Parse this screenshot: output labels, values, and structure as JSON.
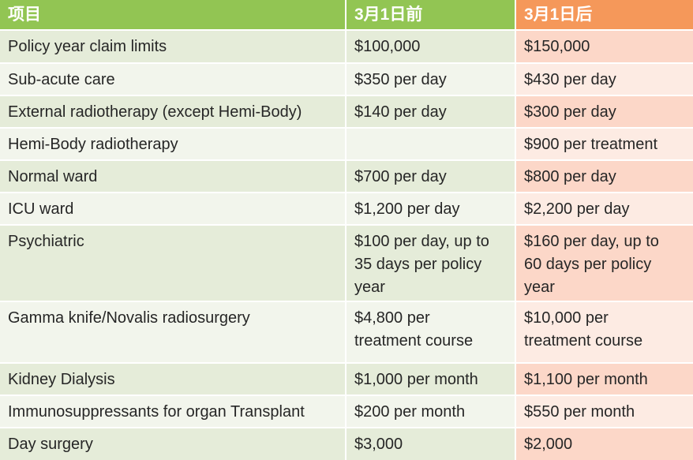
{
  "headers": [
    "项目",
    "3月1日前",
    "3月1日后"
  ],
  "rows": [
    [
      "Policy year claim limits",
      "$100,000",
      "$150,000"
    ],
    [
      "Sub-acute care",
      "$350 per day",
      "$430 per day"
    ],
    [
      "External radiotherapy (except Hemi-Body)",
      "$140 per day",
      "$300 per day"
    ],
    [
      "Hemi-Body radiotherapy",
      "",
      "$900 per treatment"
    ],
    [
      "Normal ward",
      "$700 per day",
      "$800 per day"
    ],
    [
      "ICU ward",
      "$1,200 per day",
      "$2,200 per day"
    ],
    [
      "Psychiatric",
      "$100 per day, up to\n35 days per policy\nyear",
      "$160 per day, up to\n60 days per policy\nyear"
    ],
    [
      "Gamma knife/Novalis radiosurgery",
      "$4,800 per\ntreatment course",
      "$10,000 per\ntreatment course"
    ],
    [
      "Kidney Dialysis",
      "$1,000 per month",
      "$1,100 per month"
    ],
    [
      "Immunosuppressants for organ Transplant",
      "$200 per month",
      "$550 per month"
    ],
    [
      "Day surgery",
      "$3,000",
      "$2,000"
    ]
  ],
  "colors": {
    "header_green": "#92c553",
    "header_orange": "#f5985a",
    "row_green_dark": "#e5ecd9",
    "row_green_light": "#f2f5ec",
    "row_pink_dark": "#fcd7c8",
    "row_pink_light": "#fdebe3"
  }
}
